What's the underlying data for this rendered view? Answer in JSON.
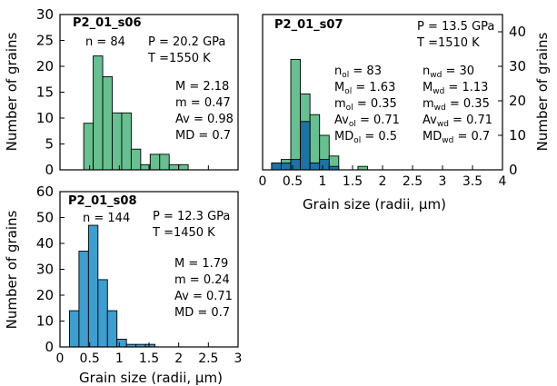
{
  "colors": {
    "green": "#66c08f",
    "blue": "#3d9ed0",
    "dark_blue": "#1d73a6",
    "axis": "#000000",
    "background": "#ffffff"
  },
  "chart_data": [
    {
      "type": "bar",
      "panel_label": "P2_01_s06",
      "xlim": [
        0,
        3
      ],
      "ylim": [
        0,
        30
      ],
      "xticks": [
        0,
        0.5,
        1,
        1.5,
        2,
        2.5,
        3
      ],
      "xtick_labels": [],
      "yticks": [
        0,
        5,
        10,
        15,
        20,
        25,
        30
      ],
      "ylabel": "Number of grains",
      "xlabel": "",
      "bin_width": 0.16,
      "series": [
        {
          "color": "#66c08f",
          "bins_start": [
            0.4,
            0.56,
            0.72,
            0.88,
            1.04,
            1.2,
            1.36,
            1.52,
            1.68,
            1.84,
            2.0
          ],
          "counts": [
            9,
            22,
            18,
            11,
            11,
            4,
            1,
            3,
            3,
            1,
            1
          ]
        }
      ],
      "annotations": {
        "n": "n = 84",
        "P": "P = 20.2 GPa",
        "T": "T =1550 K",
        "M": "M = 2.18",
        "m": "m = 0.47",
        "Av": "Av = 0.98",
        "MD": "MD = 0.7"
      }
    },
    {
      "type": "bar",
      "panel_label": "P2_01_s07",
      "xlim": [
        0,
        4
      ],
      "ylim": [
        0,
        45
      ],
      "xticks": [
        0,
        0.5,
        1,
        1.5,
        2,
        2.5,
        3,
        3.5,
        4
      ],
      "xtick_labels": [
        "0",
        "0.5",
        "1",
        "1.5",
        "2",
        "2.5",
        "3",
        "3.5",
        "4"
      ],
      "yticks": [
        0,
        10,
        20,
        30,
        40
      ],
      "y_axis_side": "right",
      "ylabel": "Number of grains",
      "xlabel": "Grain size (radii, µm)",
      "bin_width": 0.16,
      "series": [
        {
          "color": "#66c08f",
          "bins_start": [
            0.15,
            0.31,
            0.47,
            0.63,
            0.79,
            0.95,
            1.11,
            1.27,
            1.43,
            1.59
          ],
          "counts": [
            2,
            3,
            32,
            22,
            16,
            10,
            4,
            0,
            0,
            1
          ]
        },
        {
          "color": "#1d73a6",
          "bins_start": [
            0.15,
            0.31,
            0.47,
            0.63,
            0.79,
            0.95,
            1.11
          ],
          "counts": [
            2,
            2,
            3,
            14,
            2,
            3,
            1
          ]
        }
      ],
      "annotations": {
        "P": "P = 13.5 GPa",
        "T": "T =1510 K",
        "ol": [
          {
            "base": "n",
            "sub": "ol",
            "value": " = 83"
          },
          {
            "base": "M",
            "sub": "ol",
            "value": " = 1.63"
          },
          {
            "base": "m",
            "sub": "ol",
            "value": " = 0.35"
          },
          {
            "base": "Av",
            "sub": "ol",
            "value": " = 0.71"
          },
          {
            "base": "MD",
            "sub": "ol",
            "value": " = 0.5"
          }
        ],
        "wd": [
          {
            "base": "n",
            "sub": "wd",
            "value": " = 30"
          },
          {
            "base": "M",
            "sub": "wd",
            "value": " = 1.13"
          },
          {
            "base": "m",
            "sub": "wd",
            "value": " = 0.35"
          },
          {
            "base": "Av",
            "sub": "wd",
            "value": " = 0.71"
          },
          {
            "base": "MD",
            "sub": "wd",
            "value": " = 0.7"
          }
        ]
      }
    },
    {
      "type": "bar",
      "panel_label": "P2_01_s08",
      "xlim": [
        0,
        3
      ],
      "ylim": [
        0,
        60
      ],
      "xticks": [
        0,
        0.5,
        1,
        1.5,
        2,
        2.5,
        3
      ],
      "xtick_labels": [
        "0",
        "0.5",
        "1",
        "1.5",
        "2",
        "2.5",
        "3"
      ],
      "yticks": [
        0,
        10,
        20,
        30,
        40,
        50,
        60
      ],
      "ylabel": "Number of grains",
      "xlabel": "Grain size (radii, µm)",
      "bin_width": 0.16,
      "series": [
        {
          "color": "#3d9ed0",
          "bins_start": [
            0.16,
            0.32,
            0.48,
            0.64,
            0.8,
            0.96,
            1.12,
            1.28,
            1.44
          ],
          "counts": [
            14,
            37,
            47,
            26,
            14,
            3,
            1,
            1,
            1
          ]
        }
      ],
      "annotations": {
        "n": "n = 144",
        "P": "P = 12.3 GPa",
        "T": "T =1450 K",
        "M": "M = 1.79",
        "m": "m = 0.24",
        "Av": "Av = 0.71",
        "MD": "MD = 0.7"
      }
    }
  ]
}
